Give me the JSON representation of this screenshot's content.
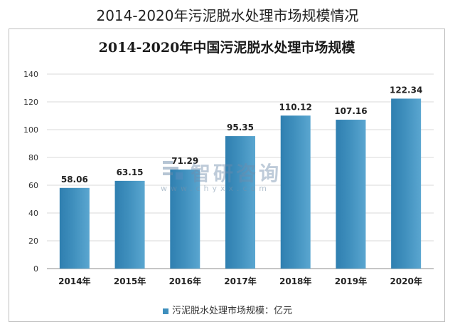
{
  "page_title": "2014-2020年污泥脱水处理市场规模情况",
  "watermark": {
    "name": "智研咨询",
    "url": "www.chyxx.com"
  },
  "chart_data": {
    "type": "bar",
    "title": "2014-2020年中国污泥脱水处理市场规模",
    "categories": [
      "2014年",
      "2015年",
      "2016年",
      "2017年",
      "2018年",
      "2019年",
      "2020年"
    ],
    "series": [
      {
        "name": "污泥脱水处理市场规模：亿元",
        "values": [
          58.06,
          63.15,
          71.29,
          95.35,
          110.12,
          107.16,
          122.34
        ]
      }
    ],
    "data_labels": [
      "58.06",
      "63.15",
      "71.29",
      "95.35",
      "110.12",
      "107.16",
      "122.34"
    ],
    "ylim": [
      0,
      140
    ],
    "yticks": [
      0,
      20,
      40,
      60,
      80,
      100,
      120,
      140
    ],
    "grid": true,
    "legend": "bottom",
    "bar_color": "#3f8fbd"
  }
}
